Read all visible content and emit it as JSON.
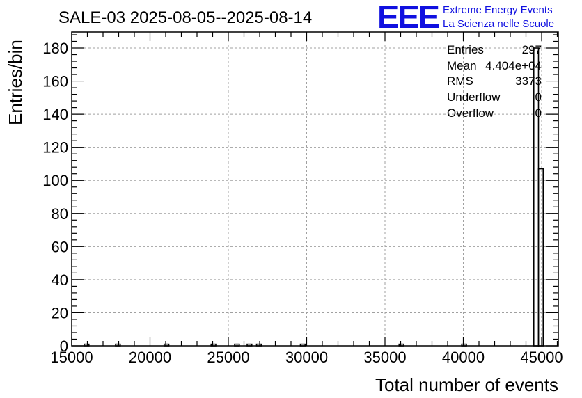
{
  "header": {
    "title": "SALE-03 2025-08-05--2025-08-14",
    "logo_text": "EEE",
    "logo_line1": "Extreme Energy Events",
    "logo_line2": "La Scienza nelle Scuole"
  },
  "stats": {
    "entries_label": "Entries",
    "entries_value": "297",
    "mean_label": "Mean",
    "mean_value": "4.404e+04",
    "rms_label": "RMS",
    "rms_value": "3373",
    "underflow_label": "Underflow",
    "underflow_value": "0",
    "overflow_label": "Overflow",
    "overflow_value": "0"
  },
  "colors": {
    "logo": "#1010e0",
    "line": "#000000",
    "grid": "#a0a0a0"
  },
  "chart_data": {
    "type": "bar",
    "title": "SALE-03 2025-08-05--2025-08-14",
    "xlabel": "Total number of events",
    "ylabel": "Entries/bin",
    "xlim": [
      15000,
      45500
    ],
    "ylim": [
      0,
      190
    ],
    "grid": true,
    "x_ticks": [
      15000,
      20000,
      25000,
      30000,
      35000,
      40000,
      45000
    ],
    "x_tick_labels": [
      "15000",
      "20000",
      "25000",
      "30000",
      "35000",
      "40000",
      "45000"
    ],
    "y_ticks": [
      0,
      20,
      40,
      60,
      80,
      100,
      120,
      140,
      160,
      180
    ],
    "y_tick_labels": [
      "0",
      "20",
      "40",
      "60",
      "80",
      "100",
      "120",
      "140",
      "160",
      "180"
    ],
    "bins": [
      {
        "x0": 15800,
        "x1": 16100,
        "value": 1
      },
      {
        "x0": 17800,
        "x1": 18100,
        "value": 1
      },
      {
        "x0": 20900,
        "x1": 21200,
        "value": 1
      },
      {
        "x0": 23900,
        "x1": 24200,
        "value": 1
      },
      {
        "x0": 25400,
        "x1": 25700,
        "value": 1
      },
      {
        "x0": 26200,
        "x1": 26500,
        "value": 1
      },
      {
        "x0": 26800,
        "x1": 27100,
        "value": 1
      },
      {
        "x0": 29600,
        "x1": 29900,
        "value": 1
      },
      {
        "x0": 35900,
        "x1": 36200,
        "value": 1
      },
      {
        "x0": 39900,
        "x1": 40200,
        "value": 1
      },
      {
        "x0": 44500,
        "x1": 44800,
        "value": 180
      },
      {
        "x0": 44800,
        "x1": 45100,
        "value": 107
      }
    ]
  }
}
